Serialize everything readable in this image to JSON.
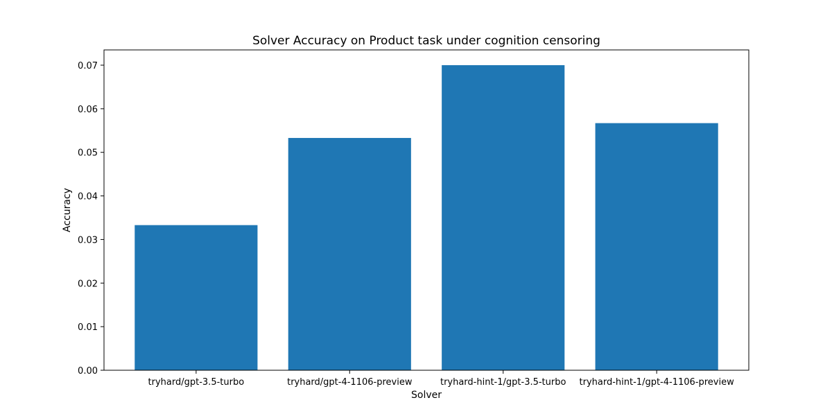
{
  "chart_data": {
    "type": "bar",
    "title": "Solver Accuracy on Product task under cognition censoring",
    "xlabel": "Solver",
    "ylabel": "Accuracy",
    "categories": [
      "tryhard/gpt-3.5-turbo",
      "tryhard/gpt-4-1106-preview",
      "tryhard-hint-1/gpt-3.5-turbo",
      "tryhard-hint-1/gpt-4-1106-preview"
    ],
    "values": [
      0.0333,
      0.0533,
      0.07,
      0.0567
    ],
    "ylim": [
      0,
      0.0735
    ],
    "yticks": [
      0.0,
      0.01,
      0.02,
      0.03,
      0.04,
      0.05,
      0.06,
      0.07
    ],
    "ytick_labels": [
      "0.00",
      "0.01",
      "0.02",
      "0.03",
      "0.04",
      "0.05",
      "0.06",
      "0.07"
    ],
    "grid": false,
    "bar_color": "#1f77b4"
  }
}
